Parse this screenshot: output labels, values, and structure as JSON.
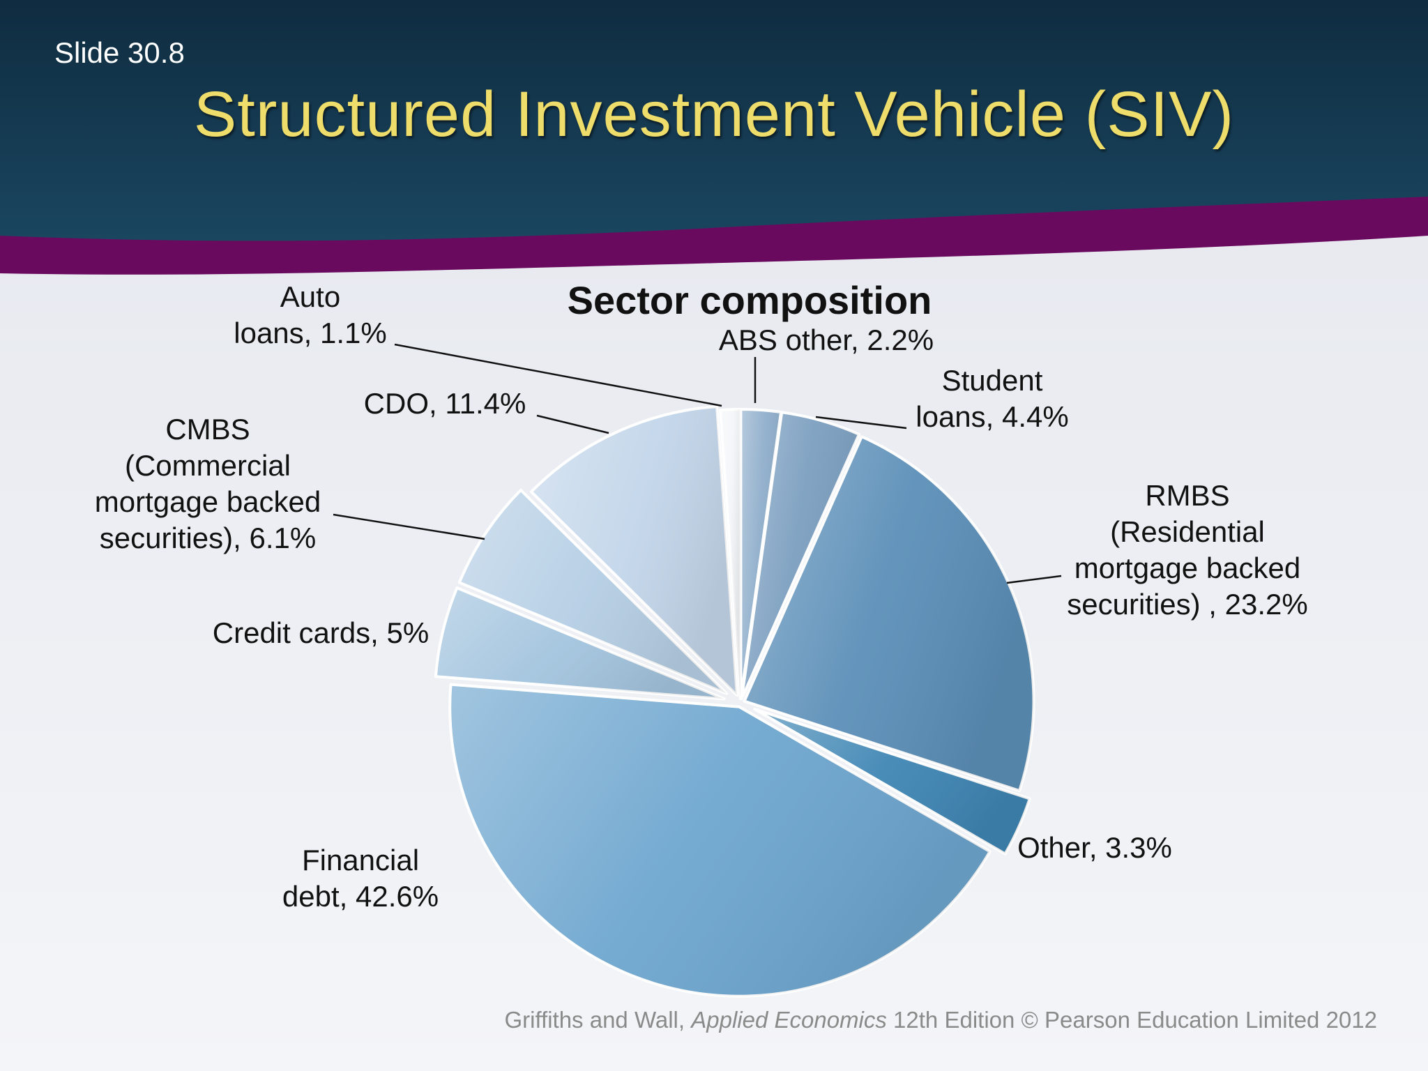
{
  "slide": {
    "number": "Slide 30.8",
    "title": "Structured Investment Vehicle (SIV)"
  },
  "footer": {
    "before": "Griffiths and Wall, ",
    "book": "Applied Economics",
    "after": " 12th Edition © Pearson Education Limited 2012"
  },
  "colors": {
    "header_dark": "#113248",
    "header_band": "#6a0a5e",
    "title_yellow": "#eedd6a",
    "background": "#eef0f4"
  },
  "chart_data": {
    "type": "pie",
    "title": "Sector composition",
    "slices": [
      {
        "name": "ABS other",
        "value": 2.2,
        "label": [
          "ABS other, 2.2%"
        ],
        "color": "#8faecb"
      },
      {
        "name": "Student loans",
        "value": 4.4,
        "label": [
          "Student",
          "loans, 4.4%"
        ],
        "color": "#7c9fc0"
      },
      {
        "name": "RMBS (Residential mortgage backed securities)",
        "value": 23.2,
        "label": [
          "RMBS",
          "(Residential",
          "mortgage backed",
          "securities) , 23.2%"
        ],
        "color": "#5c8fb8"
      },
      {
        "name": "Other",
        "value": 3.3,
        "label": [
          "Other, 3.3%"
        ],
        "color": "#3f86b4"
      },
      {
        "name": "Financial debt",
        "value": 42.6,
        "label": [
          "Financial",
          "debt, 42.6%"
        ],
        "color": "#6ea6cf"
      },
      {
        "name": "Credit cards",
        "value": 5,
        "label": [
          "Credit cards, 5%"
        ],
        "color": "#a3c4de"
      },
      {
        "name": "CMBS (Commercial mortgage backed securities)",
        "value": 6.1,
        "label": [
          "CMBS",
          "(Commercial",
          "mortgage backed",
          "securities), 6.1%"
        ],
        "color": "#b6cfe5"
      },
      {
        "name": "CDO",
        "value": 11.4,
        "label": [
          "CDO, 11.4%"
        ],
        "color": "#c3d6ea"
      },
      {
        "name": "Auto loans",
        "value": 1.1,
        "label": [
          "Auto",
          "loans, 1.1%"
        ],
        "color": "#f4f6f9"
      }
    ]
  }
}
